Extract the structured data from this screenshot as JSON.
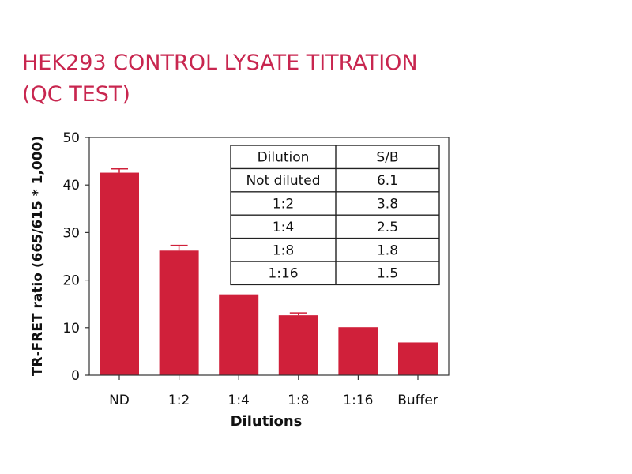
{
  "title_lines": [
    "HEK293 CONTROL LYSATE TITRATION",
    "(QC TEST)"
  ],
  "colors": {
    "title": "#c8264f",
    "bar": "#d0203a",
    "axis": "#333333",
    "text": "#111111"
  },
  "chart_data": {
    "type": "bar",
    "categories": [
      "ND",
      "1:2",
      "1:4",
      "1:8",
      "1:16",
      "Buffer"
    ],
    "values": [
      42.6,
      26.2,
      17.0,
      12.6,
      10.1,
      6.9
    ],
    "errors": [
      0.8,
      1.1,
      0,
      0.5,
      0,
      0
    ],
    "xlabel": "Dilutions",
    "ylabel": "TR-FRET ratio (665/615 * 1,000)",
    "ylim": [
      0,
      50
    ],
    "yticks": [
      0,
      10,
      20,
      30,
      40,
      50
    ],
    "grid": false,
    "legend": "none"
  },
  "inset_table": {
    "columns": [
      "Dilution",
      "S/B"
    ],
    "rows": [
      [
        "Not diluted",
        "6.1"
      ],
      [
        "1:2",
        "3.8"
      ],
      [
        "1:4",
        "2.5"
      ],
      [
        "1:8",
        "1.8"
      ],
      [
        "1:16",
        "1.5"
      ]
    ]
  }
}
